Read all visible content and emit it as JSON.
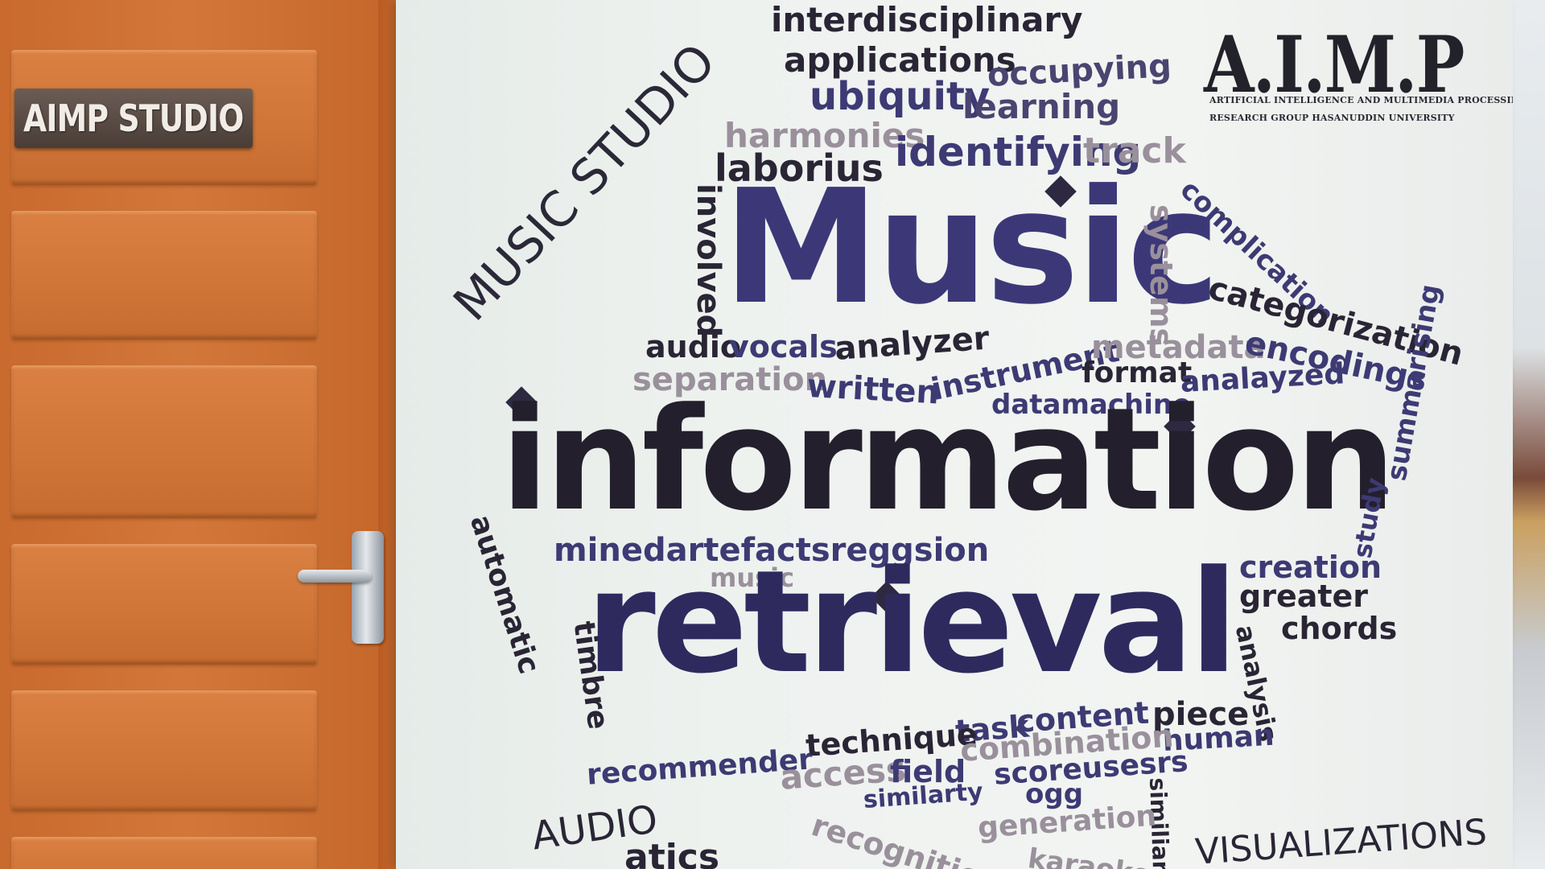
{
  "door": {
    "plate_text": "AIMP STUDIO"
  },
  "logo": {
    "title": "A.I.M.P",
    "subtitle_1": "ARTIFICIAL INTELLIGENCE AND MULTIMEDIA PROCESSING",
    "subtitle_2": "RESEARCH GROUP HASANUDDIN UNIVERSITY"
  },
  "words": {
    "music_studio": "MUSIC STUDIO",
    "interdisciplinary": "interdisciplinary",
    "applications": "applications",
    "occupying": "occupying",
    "ubiquity": "ubiquity",
    "learning": "learning",
    "harmonies": "harmonies",
    "laborius": "laborius",
    "identifying": "identifying",
    "track": "track",
    "music_big": "Music",
    "involved": "involved",
    "systems": "systems",
    "complication": "complication",
    "categorization": "categorization",
    "audio": "audio",
    "vocals": "vocals",
    "analyzer": "analyzer",
    "instrument": "instrument",
    "metadata": "metadata",
    "encodings": "encodings",
    "separation": "separation",
    "written": "written",
    "format": "format",
    "analayzed": "analayzed",
    "datamachine": "datamachine",
    "information": "information",
    "automatic": "automatic",
    "minedartefacts": "minedartefactsreggsion",
    "music_small": "music",
    "creation": "creation",
    "greater": "greater",
    "study": "study",
    "summarising": "summarising",
    "chords": "chords",
    "timbre": "timbre",
    "retrieval": "retrieval",
    "analysis": "analysis",
    "piece": "piece",
    "task": "task",
    "content": "content",
    "human": "human",
    "recommender": "recommender",
    "technique": "technique",
    "combination": "combination",
    "access": "access",
    "field": "field",
    "scoreusesrs": "scoreusesrs",
    "similarty": "similarty",
    "ogg": "ogg",
    "similiar": "similiar",
    "generation": "generation",
    "audio_caps": "AUDIO",
    "atics": "atics",
    "recognition": "recognition",
    "karaoke": "karaoke",
    "visualizations": "VISUALIZATIONS"
  }
}
